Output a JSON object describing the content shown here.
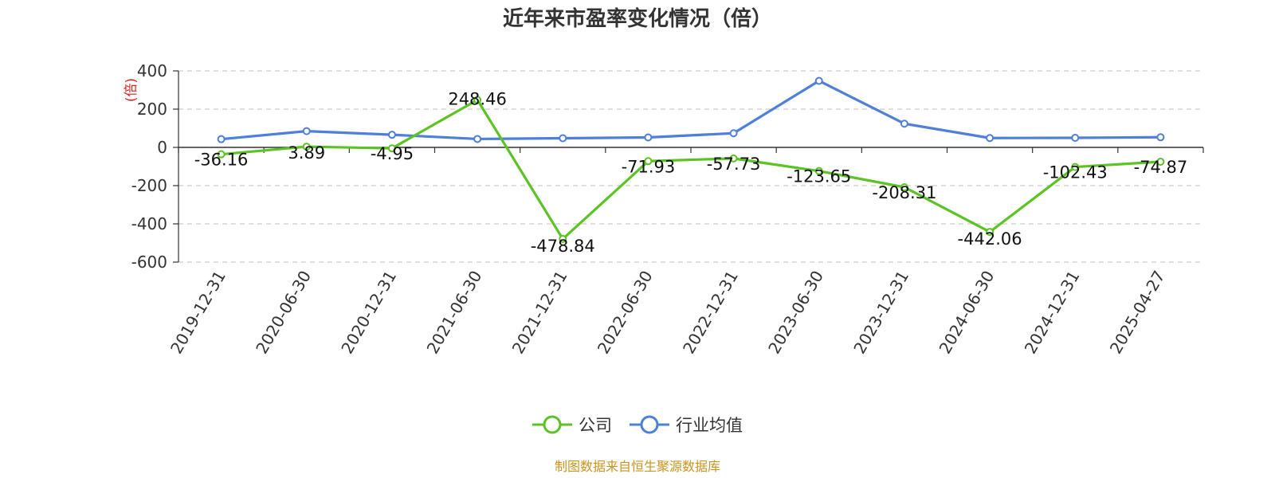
{
  "chart_data": {
    "type": "line",
    "title": "近年来市盈率变化情况（倍）",
    "ylabel": "(倍)",
    "ylim": [
      -600,
      400
    ],
    "yticks": [
      -600,
      -400,
      -200,
      0,
      200,
      400
    ],
    "grid": true,
    "legend_placement": "bottom-center",
    "categories": [
      "2019-12-31",
      "2020-06-30",
      "2020-12-31",
      "2021-06-30",
      "2021-12-31",
      "2022-06-30",
      "2022-12-31",
      "2023-06-30",
      "2023-12-31",
      "2024-06-30",
      "2024-12-31",
      "2025-04-27"
    ],
    "series": [
      {
        "name": "公司",
        "color": "#5cc325",
        "values": [
          -36.16,
          3.89,
          -4.95,
          248.46,
          -478.84,
          -71.93,
          -57.73,
          -123.65,
          -208.31,
          -442.06,
          -102.43,
          -74.87
        ],
        "labels": [
          "-36.16",
          "3.89",
          "-4.95",
          "248.46",
          "-478.84",
          "-71.93",
          "-57.73",
          "-123.65",
          "-208.31",
          "-442.06",
          "-102.43",
          "-74.87"
        ]
      },
      {
        "name": "行业均值",
        "color": "#4e7fdb",
        "values": [
          43,
          85,
          66,
          44,
          48,
          52,
          74,
          348,
          124,
          49,
          50,
          53
        ]
      }
    ]
  },
  "footer": {
    "source": "制图数据来自恒生聚源数据库"
  },
  "colors": {
    "title": "#333333",
    "axis": "#333333",
    "grid": "#cccccc",
    "ylabel": "#e02020",
    "source": "#c8951f"
  }
}
